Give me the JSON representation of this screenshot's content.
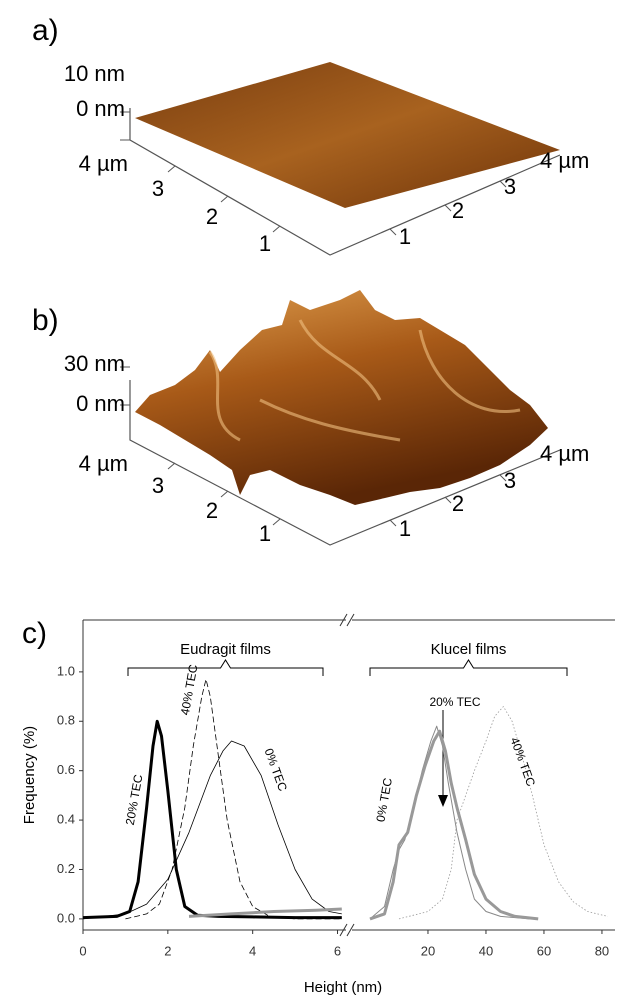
{
  "surface_a": {
    "label": "a)",
    "z_labels": [
      "10 nm",
      "0 nm"
    ],
    "left_axis": [
      "4 µm",
      "3",
      "2",
      "1"
    ],
    "right_axis": [
      "1",
      "2",
      "3",
      "4 µm"
    ]
  },
  "surface_b": {
    "label": "b)",
    "z_labels": [
      "30 nm",
      "0 nm"
    ],
    "left_axis": [
      "4 µm",
      "3",
      "2",
      "1"
    ],
    "right_axis": [
      "1",
      "2",
      "3",
      "4 µm"
    ]
  },
  "chart_data": {
    "type": "line",
    "label": "c)",
    "ylabel": "Frequency (%)",
    "xlabel": "Height (nm)",
    "ylim": [
      -0.045,
      1.21
    ],
    "yticks": [
      {
        "value": 0,
        "label": "0.0"
      },
      {
        "value": 0.2,
        "label": "0.2"
      },
      {
        "value": 0.4,
        "label": "0.4"
      },
      {
        "value": 0.6,
        "label": "0.6"
      },
      {
        "value": 0.8,
        "label": "0.8"
      },
      {
        "value": 1,
        "label": "1.0"
      }
    ],
    "panels": [
      {
        "bracket_label": "Eudragit films",
        "xlim": [
          0,
          6.2
        ],
        "xticks": [
          0,
          2,
          4,
          6
        ],
        "series": [
          {
            "color": "#000000",
            "width": 3,
            "style": "solid",
            "x": [
              0,
              0.8,
              1.1,
              1.3,
              1.5,
              1.65,
              1.75,
              1.85,
              2.0,
              2.2,
              2.4,
              2.7,
              3.2,
              4,
              5,
              6.1
            ],
            "values": [
              0.005,
              0.01,
              0.03,
              0.15,
              0.45,
              0.7,
              0.8,
              0.74,
              0.52,
              0.2,
              0.05,
              0.015,
              0.01,
              0.008,
              0.005,
              0.005
            ]
          },
          {
            "color": "#000000",
            "width": 0.8,
            "style": "dashed",
            "x": [
              1.0,
              1.5,
              1.8,
              2.1,
              2.4,
              2.6,
              2.8,
              2.9,
              3.0,
              3.2,
              3.4,
              3.7,
              4.0,
              4.4,
              5,
              6.1
            ],
            "values": [
              0,
              0.02,
              0.06,
              0.2,
              0.45,
              0.7,
              0.9,
              0.97,
              0.9,
              0.65,
              0.4,
              0.15,
              0.05,
              0.01,
              0,
              0
            ]
          },
          {
            "color": "#000000",
            "width": 0.8,
            "style": "solid",
            "x": [
              0,
              1,
              1.5,
              2,
              2.5,
              3,
              3.3,
              3.5,
              3.8,
              4.2,
              4.6,
              5,
              5.4,
              5.8,
              6.1
            ],
            "values": [
              0,
              0.02,
              0.06,
              0.16,
              0.35,
              0.58,
              0.68,
              0.72,
              0.7,
              0.58,
              0.38,
              0.2,
              0.08,
              0.03,
              0.02
            ]
          },
          {
            "color": "#999999",
            "width": 3,
            "style": "solid",
            "x": [
              2.5,
              3.5,
              4.5,
              5.5,
              6.1
            ],
            "values": [
              0.01,
              0.02,
              0.03,
              0.035,
              0.04
            ]
          }
        ],
        "annotations": [
          "20% TEC",
          "40% TEC",
          "0% TEC"
        ]
      },
      {
        "bracket_label": "Klucel films",
        "xlim": [
          -6.2,
          84.5
        ],
        "xticks": [
          20,
          40,
          60,
          80
        ],
        "series": [
          {
            "color": "#888888",
            "width": 1,
            "style": "solid",
            "x": [
              0,
              5,
              8,
              10,
              12,
              15,
              18,
              21,
              23,
              25,
              27,
              30,
              33,
              36,
              40,
              45,
              55
            ],
            "values": [
              0,
              0.05,
              0.2,
              0.28,
              0.32,
              0.45,
              0.6,
              0.72,
              0.78,
              0.7,
              0.55,
              0.35,
              0.2,
              0.08,
              0.03,
              0.01,
              0
            ]
          },
          {
            "color": "#999999",
            "width": 3,
            "style": "solid",
            "x": [
              0,
              5,
              8,
              10,
              13,
              16,
              19,
              22,
              24,
              26,
              28,
              30,
              33,
              36,
              40,
              45,
              50,
              58
            ],
            "values": [
              0,
              0.02,
              0.15,
              0.3,
              0.35,
              0.5,
              0.62,
              0.72,
              0.76,
              0.68,
              0.55,
              0.45,
              0.32,
              0.18,
              0.08,
              0.03,
              0.01,
              0
            ]
          },
          {
            "color": "#999999",
            "width": 0.8,
            "style": "dotted",
            "x": [
              10,
              20,
              25,
              28,
              30,
              33,
              36,
              40,
              43,
              46,
              49,
              52,
              56,
              60,
              65,
              70,
              75,
              82
            ],
            "values": [
              0,
              0.03,
              0.08,
              0.2,
              0.4,
              0.5,
              0.6,
              0.72,
              0.82,
              0.86,
              0.8,
              0.68,
              0.5,
              0.3,
              0.15,
              0.07,
              0.03,
              0.01
            ]
          }
        ],
        "annotations": [
          "0% TEC",
          "20% TEC",
          "40% TEC"
        ]
      }
    ]
  }
}
